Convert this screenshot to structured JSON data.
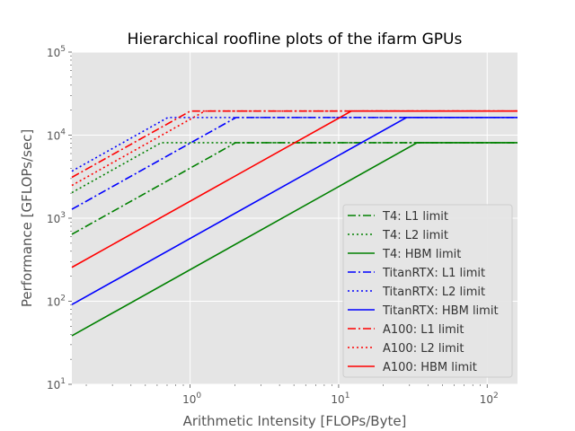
{
  "chart_data": {
    "type": "line",
    "title": "Hierarchical roofline plots of the ifarm GPUs",
    "xlabel": "Arithmetic Intensity [FLOPs/Byte]",
    "ylabel": "Performance [GFLOPs/sec]",
    "xscale": "log",
    "yscale": "log",
    "xlim": [
      0.16,
      160
    ],
    "ylim": [
      10,
      100000
    ],
    "x_ticks": [
      {
        "value": 1,
        "base": "10",
        "exp": "0"
      },
      {
        "value": 10,
        "base": "10",
        "exp": "1"
      },
      {
        "value": 100,
        "base": "10",
        "exp": "2"
      }
    ],
    "y_ticks": [
      {
        "value": 10,
        "base": "10",
        "exp": "1"
      },
      {
        "value": 100,
        "base": "10",
        "exp": "2"
      },
      {
        "value": 1000,
        "base": "10",
        "exp": "3"
      },
      {
        "value": 10000,
        "base": "10",
        "exp": "4"
      },
      {
        "value": 100000,
        "base": "10",
        "exp": "5"
      }
    ],
    "grid": true,
    "legend_position": "lower-right",
    "series": [
      {
        "name": "T4: L1 limit",
        "color": "#008000",
        "style": "dashdot",
        "bandwidth": 4000,
        "peak": 8100
      },
      {
        "name": "T4: L2 limit",
        "color": "#008000",
        "style": "dotted",
        "bandwidth": 12700,
        "peak": 8100
      },
      {
        "name": "T4: HBM limit",
        "color": "#008000",
        "style": "solid",
        "bandwidth": 240,
        "peak": 8100
      },
      {
        "name": "TitanRTX: L1 limit",
        "color": "#0000ff",
        "style": "dashdot",
        "bandwidth": 8000,
        "peak": 16300
      },
      {
        "name": "TitanRTX: L2 limit",
        "color": "#0000ff",
        "style": "dotted",
        "bandwidth": 23000,
        "peak": 16300
      },
      {
        "name": "TitanRTX: HBM limit",
        "color": "#0000ff",
        "style": "solid",
        "bandwidth": 570,
        "peak": 16300
      },
      {
        "name": "A100: L1 limit",
        "color": "#ff0000",
        "style": "dashdot",
        "bandwidth": 19400,
        "peak": 19500
      },
      {
        "name": "A100: L2 limit",
        "color": "#ff0000",
        "style": "dotted",
        "bandwidth": 15500,
        "peak": 19500
      },
      {
        "name": "A100: HBM limit",
        "color": "#ff0000",
        "style": "solid",
        "bandwidth": 1600,
        "peak": 19500
      }
    ]
  }
}
